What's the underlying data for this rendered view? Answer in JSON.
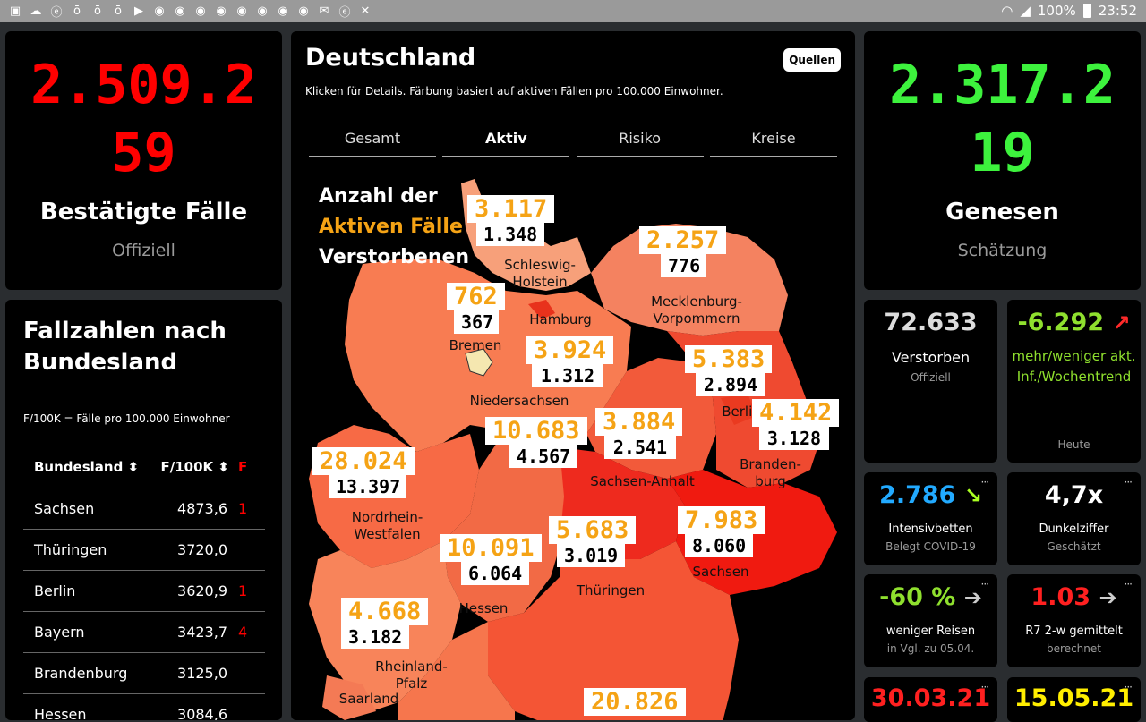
{
  "statusbar": {
    "battery": "100%",
    "time": "23:52"
  },
  "left_card": {
    "number_line1": "2.509.2",
    "number_line2": "59",
    "title": "Bestätigte Fälle",
    "subtitle": "Offiziell",
    "color": "#ff0000"
  },
  "table_card": {
    "title_line1": "Fallzahlen nach",
    "title_line2": "Bundesland",
    "note": "F/100K = Fälle pro 100.000 Einwohner",
    "headers": [
      "Bundesland",
      "F/100K",
      "F"
    ],
    "rows": [
      {
        "name": "Sachsen",
        "value": "4873,6",
        "extra": "1"
      },
      {
        "name": "Thüringen",
        "value": "3720,0",
        "extra": ""
      },
      {
        "name": "Berlin",
        "value": "3620,9",
        "extra": "1"
      },
      {
        "name": "Bayern",
        "value": "3423,7",
        "extra": "4"
      },
      {
        "name": "Brandenburg",
        "value": "3125,0",
        "extra": ""
      },
      {
        "name": "Hessen",
        "value": "3084,6",
        "extra": ""
      }
    ]
  },
  "map_card": {
    "title": "Deutschland",
    "quellen": "Quellen",
    "description": "Klicken für Details. Färbung basiert auf aktiven Fällen pro 100.000 Einwohner.",
    "tabs": [
      "Gesamt",
      "Aktiv",
      "Risiko",
      "Kreise"
    ],
    "active_tab": "Aktiv",
    "legend_line1": "Anzahl der",
    "legend_line2": "Aktiven Fälle",
    "legend_line3": "Verstorbenen",
    "states": {
      "sh": {
        "active": "3.117",
        "deaths": "1.348",
        "name1": "Schleswig-",
        "name2": "Holstein"
      },
      "mv": {
        "active": "2.257",
        "deaths": "776",
        "name1": "Mecklenburg-",
        "name2": "Vorpommern"
      },
      "hb": {
        "active": "762",
        "deaths": "367",
        "name1": "Bremen"
      },
      "hh": {
        "name1": "Hamburg"
      },
      "ni": {
        "active": "3.924",
        "deaths": "1.312",
        "name1": "Niedersachsen"
      },
      "be": {
        "active": "5.383",
        "deaths": "2.894",
        "name1": "Berlin"
      },
      "bb": {
        "active": "4.142",
        "deaths": "3.128",
        "name1": "Branden-",
        "name2": "burg"
      },
      "nw": {
        "active": "28.024",
        "deaths": "13.397",
        "name1": "Nordrhein-",
        "name2": "Westfalen"
      },
      "he": {
        "active": "10.091",
        "deaths": "6.064",
        "name1": "Hessen"
      },
      "st": {
        "active": "3.884",
        "deaths": "2.541",
        "name1": "Sachsen-Anhalt"
      },
      "ni2": {
        "active": "10.683",
        "deaths": "4.567"
      },
      "sn": {
        "active": "7.983",
        "deaths": "8.060",
        "name1": "Sachsen"
      },
      "th": {
        "active": "5.683",
        "deaths": "3.019",
        "name1": "Thüringen"
      },
      "rp": {
        "active": "4.668",
        "deaths": "3.182",
        "name1": "Rheinland-",
        "name2": "Pfalz"
      },
      "sl": {
        "name1": "Saarland"
      },
      "by": {
        "active": "20.826"
      }
    }
  },
  "right_card": {
    "number_line1": "2.317.2",
    "number_line2": "19",
    "title": "Genesen",
    "subtitle": "Schätzung",
    "color": "#3df23d"
  },
  "tiles": {
    "verstorben": {
      "value": "72.633",
      "label": "Verstorben",
      "sub": "Offiziell"
    },
    "trend": {
      "value": "-6.292",
      "label": "mehr/weniger akt. Inf./Wochentrend",
      "sub": "Heute"
    },
    "intensiv": {
      "value": "2.786",
      "label": "Intensivbetten",
      "sub": "Belegt COVID-19"
    },
    "dunkel": {
      "value": "4,7x",
      "label": "Dunkelziffer",
      "sub": "Geschätzt"
    },
    "reisen": {
      "value": "-60 %",
      "label": "weniger Reisen",
      "sub": "in Vgl. zu 05.04."
    },
    "r7": {
      "value": "1.03",
      "label": "R7 2-w gemittelt",
      "sub": "berechnet"
    },
    "date1": {
      "value": "30.03.21"
    },
    "date2": {
      "value": "15.05.21"
    }
  }
}
